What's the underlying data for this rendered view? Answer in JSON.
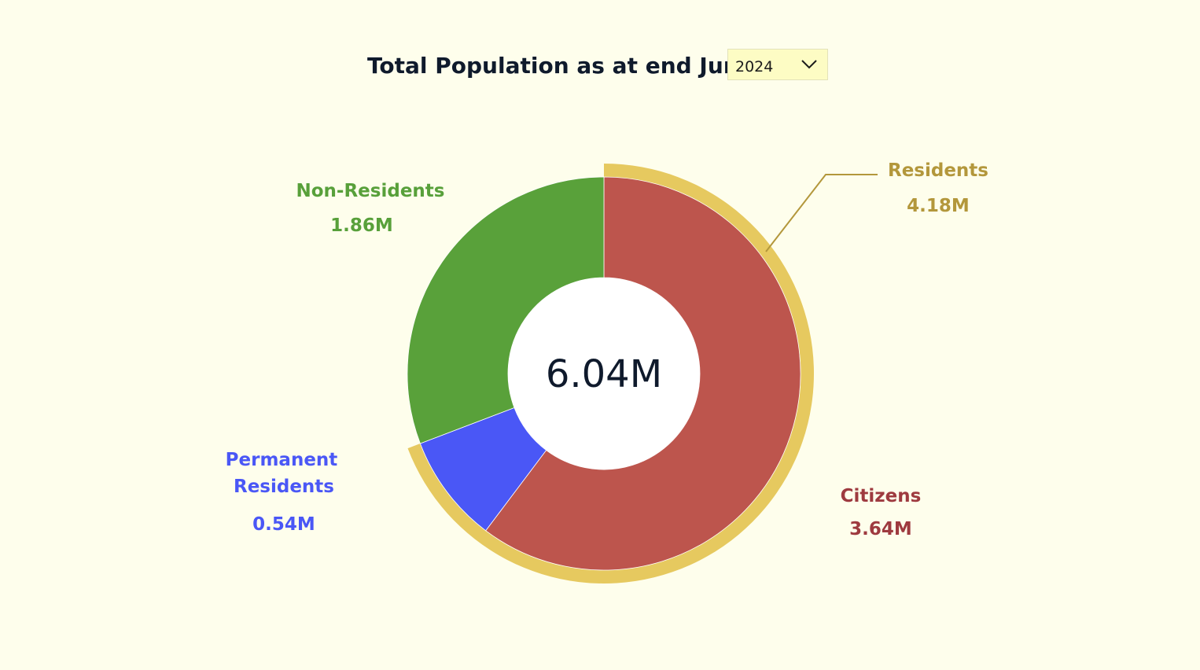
{
  "header": {
    "title": "Total Population as at end June",
    "year_selected": "2024"
  },
  "colors": {
    "background": "#fefeec",
    "citizens": "#bd554d",
    "permanent_residents": "#4a57f6",
    "non_residents": "#59a13a",
    "residents_ring": "#e6c95f",
    "center_hole": "#ffffff",
    "residents_label": "#b3973b",
    "citizens_label": "#9e3a3f",
    "pr_label": "#4a57f6",
    "nr_label": "#58a03a",
    "center_text": "#0f1a2c"
  },
  "chart_data": {
    "type": "pie",
    "center_label": "6.04M",
    "total": 6.04,
    "slices": [
      {
        "label": "Citizens",
        "value": 3.64,
        "value_label": "3.64M"
      },
      {
        "label": "Permanent Residents",
        "label_lines": [
          "Permanent",
          "Residents"
        ],
        "value": 0.54,
        "value_label": "0.54M"
      },
      {
        "label": "Non-Residents",
        "value": 1.86,
        "value_label": "1.86M"
      }
    ],
    "outer_ring": {
      "label": "Residents",
      "value": 4.18,
      "value_label": "4.18M",
      "covers": [
        "Citizens",
        "Permanent Residents"
      ]
    }
  }
}
